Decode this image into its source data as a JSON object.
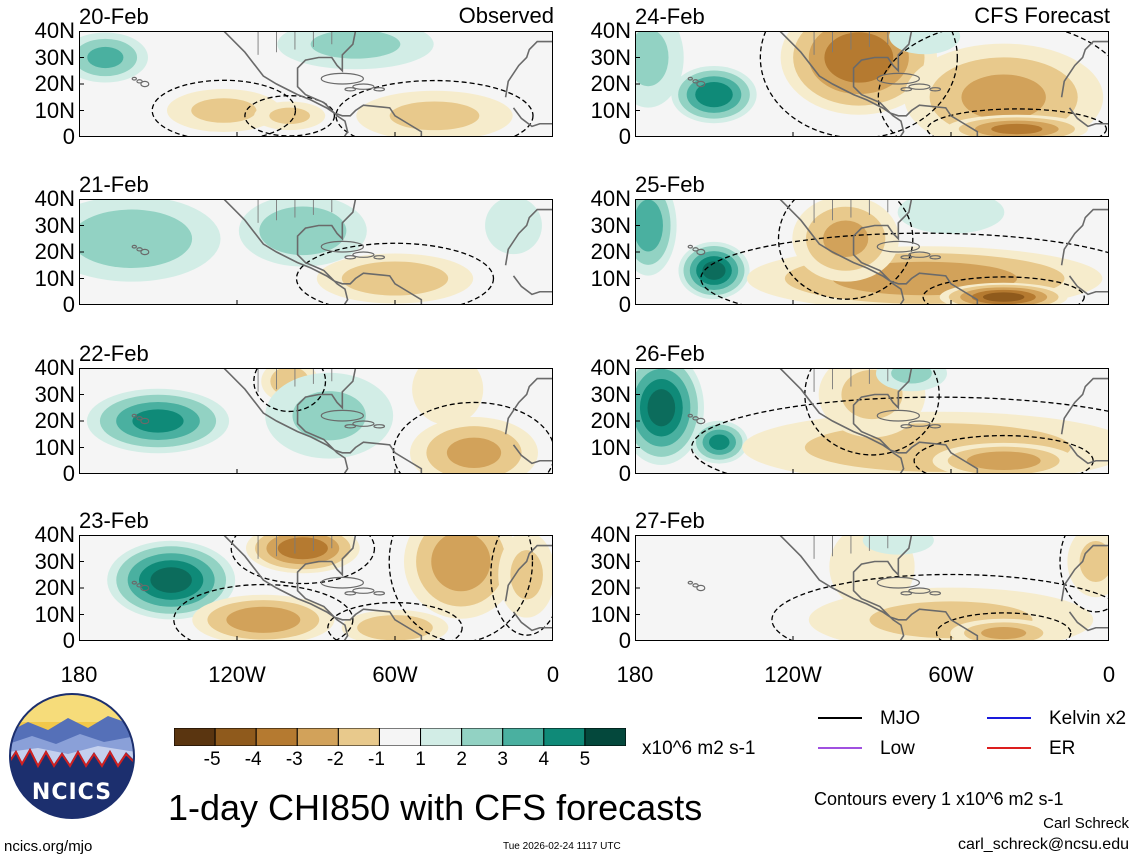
{
  "figure": {
    "title": "1-day CHI850 with CFS forecasts",
    "observed_label": "Observed",
    "forecast_label": "CFS Forecast",
    "footer_left": "ncics.org/mjo",
    "footer_center": "Tue 2026-02-24 1117 UTC",
    "author": "Carl Schreck",
    "email": "carl_schreck@ncsu.edu",
    "logo_text": "NCICS"
  },
  "chart_data": {
    "type": "heatmap",
    "variable": "CHI850 (850-hPa velocity potential anomaly)",
    "units": "x10^6 m2 s-1",
    "contour_note": "Contours every 1 x10^6 m2 s-1",
    "y_ticks": [
      "40N",
      "30N",
      "20N",
      "10N",
      "0"
    ],
    "x_ticks": [
      "180",
      "120W",
      "60W",
      "0"
    ],
    "lon_range": [
      -180,
      0
    ],
    "lat_range": [
      0,
      40
    ],
    "colorbar": {
      "labels": [
        "-5",
        "-4",
        "-3",
        "-2",
        "-1",
        "1",
        "2",
        "3",
        "4",
        "5"
      ],
      "colors": [
        "#5a3510",
        "#8f5a1c",
        "#b57a30",
        "#d2a25a",
        "#e8c98c",
        "#f6eccc",
        "#f5f5f5",
        "#d2ede6",
        "#92d2c3",
        "#4ab0a0",
        "#0f8a78",
        "#0c6c5c",
        "#04483c"
      ]
    },
    "legend": [
      {
        "label": "MJO",
        "color": "#000000"
      },
      {
        "label": "Kelvin x2",
        "color": "#1a1adc"
      },
      {
        "label": "Low",
        "color": "#a050e0"
      },
      {
        "label": "ER",
        "color": "#dc1e1e"
      }
    ],
    "panels": [
      {
        "date": "20-Feb",
        "type": "observed"
      },
      {
        "date": "21-Feb",
        "type": "observed"
      },
      {
        "date": "22-Feb",
        "type": "observed"
      },
      {
        "date": "23-Feb",
        "type": "observed"
      },
      {
        "date": "24-Feb",
        "type": "forecast"
      },
      {
        "date": "25-Feb",
        "type": "forecast"
      },
      {
        "date": "26-Feb",
        "type": "forecast"
      },
      {
        "date": "27-Feb",
        "type": "forecast"
      }
    ],
    "anomalies": {
      "20-Feb": [
        [
          -170,
          30,
          12,
          7,
          2.5
        ],
        [
          -125,
          10,
          16,
          6,
          -1.5
        ],
        [
          -75,
          35,
          22,
          7,
          1.5
        ],
        [
          -45,
          8,
          22,
          7,
          -1.5
        ],
        [
          -100,
          8,
          10,
          4,
          -1.5
        ]
      ],
      "21-Feb": [
        [
          -160,
          25,
          25,
          12,
          2
        ],
        [
          -95,
          28,
          18,
          10,
          2
        ],
        [
          -60,
          10,
          22,
          7,
          -2
        ],
        [
          -15,
          30,
          8,
          8,
          1
        ]
      ],
      "22-Feb": [
        [
          -150,
          20,
          20,
          9,
          3.5
        ],
        [
          -100,
          35,
          8,
          6,
          -2
        ],
        [
          -85,
          22,
          18,
          12,
          1.5
        ],
        [
          -30,
          8,
          18,
          10,
          -2.5
        ],
        [
          -40,
          32,
          10,
          10,
          -1.3
        ]
      ],
      "23-Feb": [
        [
          -145,
          23,
          18,
          11,
          4.5
        ],
        [
          -95,
          35,
          16,
          7,
          -4
        ],
        [
          -35,
          30,
          16,
          16,
          -3
        ],
        [
          -110,
          8,
          20,
          7,
          -3
        ],
        [
          -60,
          5,
          15,
          5,
          -2.2
        ],
        [
          -10,
          25,
          8,
          12,
          -1.5
        ]
      ],
      "24-Feb": [
        [
          -150,
          16,
          12,
          8,
          4
        ],
        [
          -95,
          30,
          22,
          16,
          -4
        ],
        [
          -40,
          15,
          28,
          15,
          -2.5
        ],
        [
          -35,
          3,
          20,
          4,
          -3.5
        ],
        [
          -175,
          30,
          10,
          14,
          1.5
        ],
        [
          -70,
          38,
          10,
          5,
          1.3
        ]
      ],
      "25-Feb": [
        [
          -150,
          13,
          10,
          8,
          4.5
        ],
        [
          -175,
          30,
          8,
          14,
          3
        ],
        [
          -70,
          10,
          50,
          9,
          -3
        ],
        [
          -40,
          3,
          18,
          4,
          -4.5
        ],
        [
          -100,
          25,
          15,
          12,
          -2.5
        ],
        [
          -60,
          35,
          15,
          6,
          1.3
        ]
      ],
      "26-Feb": [
        [
          -170,
          25,
          12,
          16,
          4.5
        ],
        [
          -148,
          12,
          8,
          6,
          3.5
        ],
        [
          -65,
          10,
          55,
          10,
          -2
        ],
        [
          -40,
          5,
          20,
          5,
          -3
        ],
        [
          -90,
          30,
          15,
          12,
          -1.5
        ],
        [
          -75,
          38,
          10,
          5,
          1.5
        ]
      ],
      "27-Feb": [
        [
          -60,
          8,
          40,
          9,
          -1.5
        ],
        [
          -40,
          3,
          15,
          4,
          -2.5
        ],
        [
          -90,
          28,
          12,
          12,
          -1.3
        ],
        [
          -5,
          30,
          8,
          10,
          -1.5
        ],
        [
          -80,
          38,
          10,
          4,
          1.3
        ]
      ]
    }
  }
}
